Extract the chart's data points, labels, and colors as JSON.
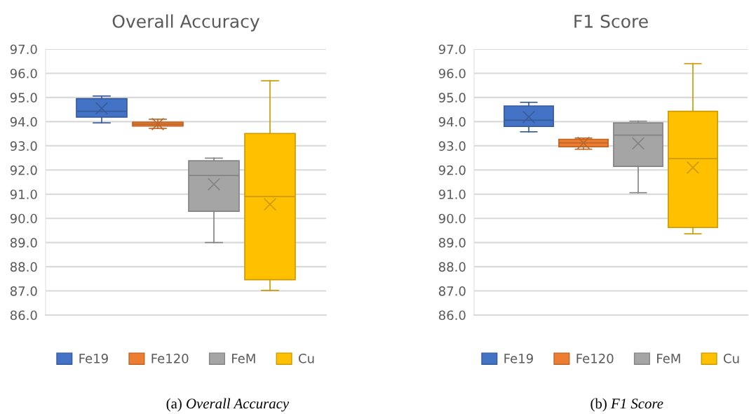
{
  "chart_data": [
    {
      "type": "box",
      "title": "Overall Accuracy",
      "categories": [
        null
      ],
      "ylim": [
        86,
        97
      ],
      "yticks": [
        {
          "value": 86,
          "label": "86.0"
        },
        {
          "value": 87,
          "label": "87.0"
        },
        {
          "value": 88,
          "label": "88.0"
        },
        {
          "value": 89,
          "label": "89.0"
        },
        {
          "value": 90,
          "label": "90.0"
        },
        {
          "value": 91,
          "label": "91.0"
        },
        {
          "value": 92,
          "label": "92.0"
        },
        {
          "value": 93,
          "label": "93.0"
        },
        {
          "value": 94,
          "label": "94.0"
        },
        {
          "value": 95,
          "label": "95.0"
        },
        {
          "value": 96,
          "label": "96.0"
        },
        {
          "value": 97,
          "label": "97.0"
        }
      ],
      "grid": "y",
      "legend": "bottom",
      "tick_labels": "y",
      "annotations": [
        "(a)",
        "Overall Accuracy"
      ],
      "series": [
        {
          "name": "Fe19",
          "color": "#4472c4",
          "boxes": [
            {
              "low": 93.95,
              "q1": 94.19,
              "median": 94.43,
              "q3": 94.95,
              "high": 95.06,
              "mean": 94.55
            }
          ]
        },
        {
          "name": "Fe120",
          "color": "#ed7d31",
          "boxes": [
            {
              "low": 93.72,
              "q1": 93.82,
              "median": 93.9,
              "q3": 93.98,
              "high": 94.1,
              "mean": 93.9
            }
          ]
        },
        {
          "name": "FeM",
          "color": "#a5a5a5",
          "boxes": [
            {
              "low": 89.0,
              "q1": 90.29,
              "median": 91.77,
              "q3": 92.38,
              "high": 92.49,
              "mean": 91.41
            }
          ]
        },
        {
          "name": "Cu",
          "color": "#ffc000",
          "boxes": [
            {
              "low": 87.02,
              "q1": 87.46,
              "median": 90.9,
              "q3": 93.51,
              "high": 95.69,
              "mean": 90.58
            }
          ]
        }
      ]
    },
    {
      "type": "box",
      "title": "F1 Score",
      "categories": [
        null
      ],
      "ylim": [
        86,
        97
      ],
      "yticks": [
        {
          "value": 86,
          "label": "86.0"
        },
        {
          "value": 87,
          "label": "87.0"
        },
        {
          "value": 88,
          "label": "88.0"
        },
        {
          "value": 89,
          "label": "89.0"
        },
        {
          "value": 90,
          "label": "90.0"
        },
        {
          "value": 91,
          "label": "91.0"
        },
        {
          "value": 92,
          "label": "92.0"
        },
        {
          "value": 93,
          "label": "93.0"
        },
        {
          "value": 94,
          "label": "94.0"
        },
        {
          "value": 95,
          "label": "95.0"
        },
        {
          "value": 96,
          "label": "96.0"
        },
        {
          "value": 97,
          "label": "97.0"
        }
      ],
      "grid": "y",
      "legend": "bottom",
      "tick_labels": "y",
      "annotations": [
        "(b)",
        "F1 Score"
      ],
      "series": [
        {
          "name": "Fe19",
          "color": "#4472c4",
          "boxes": [
            {
              "low": 93.58,
              "q1": 93.8,
              "median": 94.06,
              "q3": 94.65,
              "high": 94.8,
              "mean": 94.19
            }
          ]
        },
        {
          "name": "Fe120",
          "color": "#ed7d31",
          "boxes": [
            {
              "low": 92.86,
              "q1": 92.96,
              "median": 93.12,
              "q3": 93.27,
              "high": 93.32,
              "mean": 93.12
            }
          ]
        },
        {
          "name": "FeM",
          "color": "#a5a5a5",
          "boxes": [
            {
              "low": 91.06,
              "q1": 92.15,
              "median": 93.44,
              "q3": 93.95,
              "high": 94.02,
              "mean": 93.1
            }
          ]
        },
        {
          "name": "Cu",
          "color": "#ffc000",
          "boxes": [
            {
              "low": 89.36,
              "q1": 89.62,
              "median": 92.47,
              "q3": 94.43,
              "high": 96.4,
              "mean": 92.1
            }
          ]
        }
      ]
    }
  ]
}
